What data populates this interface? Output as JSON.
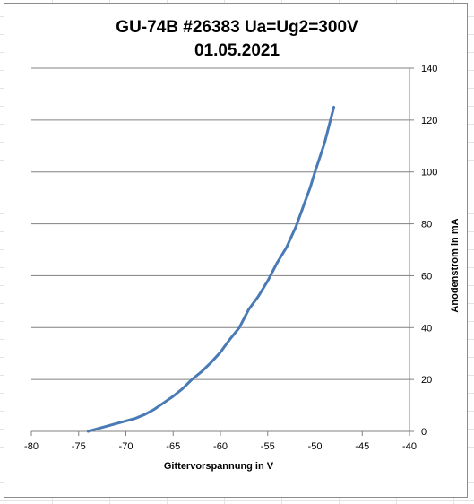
{
  "chart_data": {
    "type": "line",
    "title": "GU-74B #26383 Ua=Ug2=300V",
    "subtitle": "01.05.2021",
    "xlabel": "Gittervorspannung in V",
    "ylabel": "Anodenstrom in mA",
    "xlim": [
      -80,
      -40
    ],
    "ylim": [
      0,
      140
    ],
    "x_ticks": [
      "-80",
      "-75",
      "-70",
      "-65",
      "-60",
      "-55",
      "-50",
      "-45",
      "-40"
    ],
    "y_ticks": [
      "0",
      "20",
      "40",
      "60",
      "80",
      "100",
      "120",
      "140"
    ],
    "y_axis_side": "right",
    "grid": "horizontal",
    "legend": "none",
    "colors": {
      "line": "#4a7ab5",
      "grid": "#808080"
    },
    "series": [
      {
        "x": [
          -74,
          -73,
          -72,
          -71,
          -70,
          -69,
          -68,
          -67,
          -66,
          -65,
          -64,
          -63,
          -62,
          -61,
          -60,
          -59,
          -58,
          -57,
          -56,
          -55,
          -54,
          -53,
          -52.5,
          -52,
          -51,
          -50.5,
          -50,
          -49,
          -48
        ],
        "y": [
          0,
          1,
          2,
          3,
          4,
          5,
          6.5,
          8.5,
          11,
          13.5,
          16.5,
          20,
          23,
          26.5,
          30.5,
          35.5,
          40,
          47,
          52,
          58,
          65,
          71,
          75,
          79,
          89,
          94,
          100,
          111,
          125
        ]
      }
    ]
  }
}
